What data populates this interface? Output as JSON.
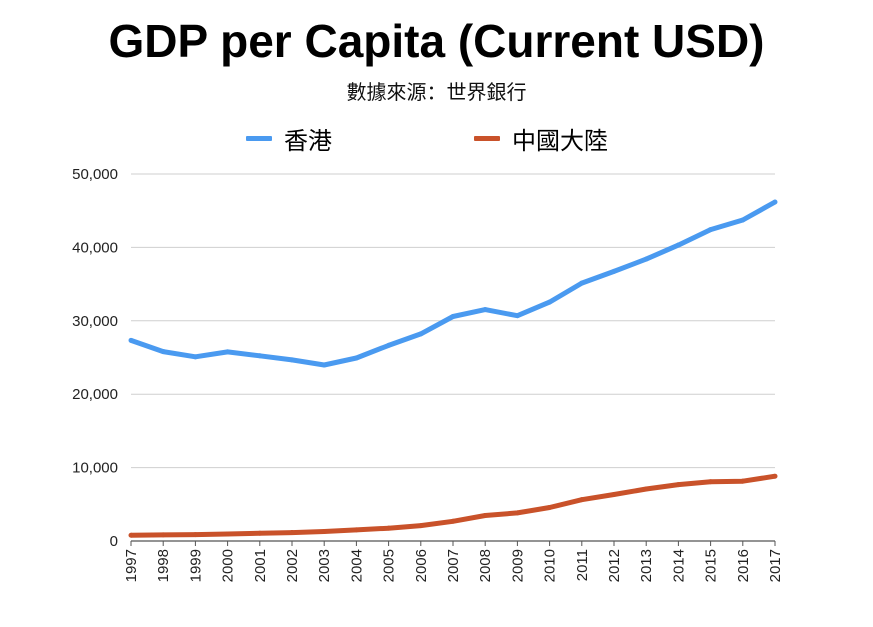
{
  "title": "GDP per Capita (Current USD)",
  "subtitle": "數據來源：世界銀行",
  "colors": {
    "hong_kong": "#4A9AF0",
    "mainland_china": "#C9522A",
    "grid": "#CFCFCF",
    "axis": "#555555"
  },
  "chart_data": {
    "type": "line",
    "title": "GDP per Capita (Current USD)",
    "subtitle": "數據來源：世界銀行",
    "xlabel": "",
    "ylabel": "",
    "x": [
      "1997",
      "1998",
      "1999",
      "2000",
      "2001",
      "2002",
      "2003",
      "2004",
      "2005",
      "2006",
      "2007",
      "2008",
      "2009",
      "2010",
      "2011",
      "2012",
      "2013",
      "2014",
      "2015",
      "2016",
      "2017"
    ],
    "ylim": [
      0,
      50000
    ],
    "yticks": [
      0,
      10000,
      20000,
      30000,
      40000,
      50000
    ],
    "ytick_labels": [
      "0",
      "10,000",
      "20,000",
      "30,000",
      "40,000",
      "50,000"
    ],
    "grid": true,
    "legend_position": "top-center",
    "series": [
      {
        "name": "香港",
        "color": "#4A9AF0",
        "values": [
          27330,
          25810,
          25090,
          25760,
          25230,
          24670,
          23980,
          24930,
          26650,
          28220,
          30590,
          31520,
          30700,
          32550,
          35140,
          36730,
          38400,
          40320,
          42430,
          43730,
          46190
        ]
      },
      {
        "name": "中國大陸",
        "color": "#C9522A",
        "values": [
          780,
          830,
          870,
          960,
          1050,
          1150,
          1290,
          1510,
          1750,
          2100,
          2690,
          3470,
          3830,
          4560,
          5630,
          6340,
          7080,
          7680,
          8070,
          8150,
          8830
        ]
      }
    ]
  }
}
